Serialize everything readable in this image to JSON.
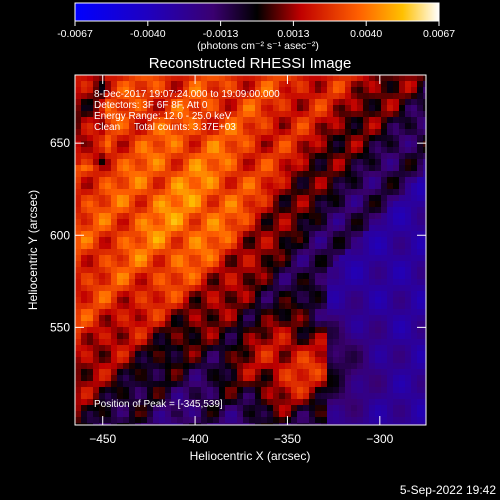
{
  "colorbar": {
    "ticks": [
      "-0.0067",
      "-0.0040",
      "-0.0013",
      "0.0013",
      "0.0040",
      "0.0067"
    ],
    "unit_label": "(photons cm⁻² s⁻¹ asec⁻²)",
    "range": [
      -0.0067,
      0.0067
    ]
  },
  "chart_data": {
    "type": "heatmap",
    "title": "Reconstructed RHESSI Image",
    "xlabel": "Heliocentric X (arcsec)",
    "ylabel": "Heliocentric Y (arcsec)",
    "xlim": [
      -465,
      -275
    ],
    "ylim": [
      497,
      687
    ],
    "x_ticks": [
      -450,
      -400,
      -350,
      -300
    ],
    "y_ticks": [
      550,
      600,
      650
    ],
    "x_tick_labels": [
      "−450",
      "−400",
      "−350",
      "−300"
    ],
    "y_tick_labels": [
      "550",
      "600",
      "650"
    ],
    "peak": [
      -345,
      539
    ],
    "annotations": [
      "8-Dec-2017 19:07:24.000 to 19:09:00.000",
      "Detectors: 3F 6F 8F, Att 0",
      "Energy Range: 12.0 - 25.0 keV",
      "Clean     Total counts: 3.37E+03"
    ],
    "peak_label": "Position of Peak = [-345,539]",
    "grid": false
  },
  "footer": {
    "date": "5-Sep-2022 19:42"
  }
}
